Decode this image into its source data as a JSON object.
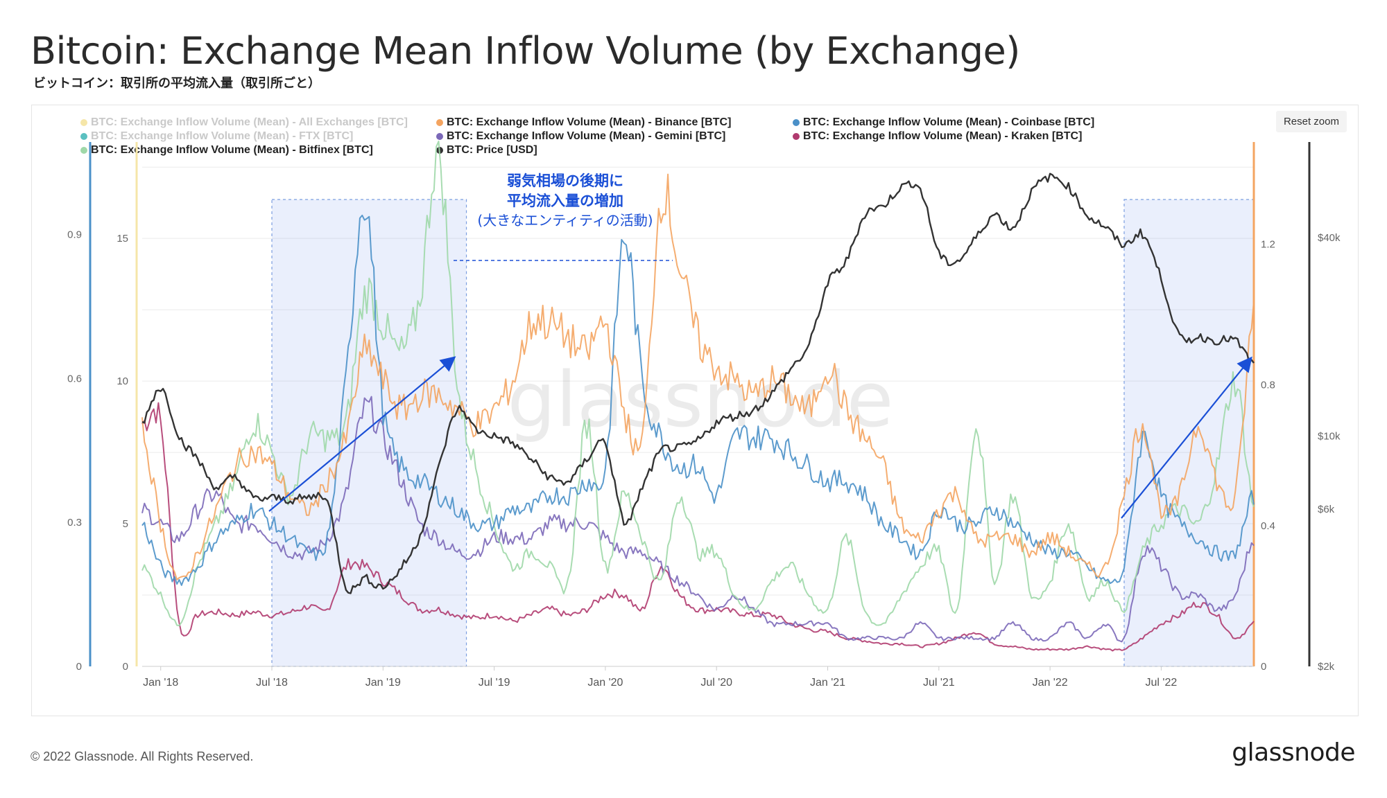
{
  "title": "Bitcoin: Exchange Mean Inflow Volume (by Exchange)",
  "subtitle": "ビットコイン：取引所の平均流入量（取引所ごと）",
  "reset_zoom": "Reset zoom",
  "watermark": "glassnode",
  "footer": "© 2022 Glassnode. All Rights Reserved.",
  "brand": "glassnode",
  "legend": [
    {
      "label": "BTC: Exchange Inflow Volume (Mean) - All Exchanges [BTC]",
      "color": "#f5e6a8",
      "faded": true
    },
    {
      "label": "BTC: Exchange Inflow Volume (Mean) - Binance [BTC]",
      "color": "#f4a460",
      "faded": false
    },
    {
      "label": "BTC: Exchange Inflow Volume (Mean) - Coinbase [BTC]",
      "color": "#4a90c8",
      "faded": false
    },
    {
      "label": "BTC: Exchange Inflow Volume (Mean) - FTX [BTC]",
      "color": "#5bc0c0",
      "faded": true
    },
    {
      "label": "BTC: Exchange Inflow Volume (Mean) - Gemini [BTC]",
      "color": "#7b68b8",
      "faded": false
    },
    {
      "label": "BTC: Exchange Inflow Volume (Mean) - Kraken [BTC]",
      "color": "#b03a6e",
      "faded": false
    },
    {
      "label": "BTC: Exchange Inflow Volume (Mean) - Bitfinex [BTC]",
      "color": "#9fd8a8",
      "faded": false
    },
    {
      "label": "BTC: Price [USD]",
      "color": "#333333",
      "faded": false
    }
  ],
  "annotation": {
    "line1": "弱気相場の後期に",
    "line2": "平均流入量の増加",
    "line3": "(大きなエンティティの活動)",
    "color": "#1a4fd6"
  },
  "chart_data": {
    "type": "line",
    "x_ticks": [
      "Jan '18",
      "Jul '18",
      "Jan '19",
      "Jul '19",
      "Jan '20",
      "Jul '20",
      "Jan '21",
      "Jul '21",
      "Jan '22",
      "Jul '22"
    ],
    "x_range": [
      "2017-12-01",
      "2022-11-15"
    ],
    "axes": {
      "left_outer": {
        "ticks": [
          "0",
          "0.3",
          "0.6",
          "0.9"
        ],
        "range": [
          0,
          1.1
        ]
      },
      "left_inner": {
        "ticks": [
          "0",
          "5",
          "10",
          "15"
        ],
        "range": [
          0,
          18.5
        ]
      },
      "right_inner": {
        "ticks": [
          "0",
          "0.4",
          "0.8",
          "1.2"
        ],
        "range": [
          0,
          1.5
        ]
      },
      "right_price_log": {
        "ticks": [
          "$2k",
          "$6k",
          "$10k",
          "$40k"
        ],
        "range": [
          2000,
          80000
        ]
      }
    },
    "x": [
      0,
      1,
      2,
      3,
      4,
      5,
      6,
      7,
      8,
      9,
      10,
      11,
      12,
      13,
      14,
      15,
      16,
      17,
      18,
      19,
      20,
      21,
      22,
      23,
      24,
      25,
      26,
      27,
      28,
      29,
      30,
      31,
      32,
      33,
      34,
      35,
      36,
      37,
      38,
      39,
      40,
      41,
      42,
      43,
      44,
      45,
      46,
      47,
      48,
      49,
      50,
      51,
      52,
      53,
      54,
      55,
      56,
      57,
      58,
      59,
      60
    ],
    "x_unit": "months since Dec 2017",
    "series": [
      {
        "name": "Binance",
        "axis": "left_inner",
        "color": "#f4a460",
        "values": [
          8.3,
          5.0,
          3.0,
          4.0,
          5.5,
          7.0,
          7.5,
          7.0,
          6.0,
          5.5,
          6.5,
          8.0,
          11.0,
          10.0,
          9.0,
          9.5,
          9.5,
          9.0,
          8.5,
          9.0,
          10.0,
          12.0,
          12.0,
          11.5,
          11.0,
          12.0,
          9.0,
          8.0,
          16.5,
          14.0,
          11.5,
          10.5,
          10.0,
          9.5,
          10.0,
          9.5,
          9.0,
          10.5,
          9.0,
          8.0,
          7.0,
          5.0,
          4.5,
          5.5,
          6.0,
          4.5,
          4.5,
          4.5,
          4.0,
          4.5,
          4.0,
          3.5,
          3.5,
          6.0,
          8.5,
          5.5,
          6.0,
          8.5,
          6.5,
          6.0,
          12.5
        ]
      },
      {
        "name": "Coinbase",
        "axis": "left_inner",
        "color": "#4a90c8",
        "values": [
          5.0,
          3.5,
          3.0,
          3.5,
          4.5,
          5.0,
          5.5,
          5.0,
          4.5,
          4.0,
          4.5,
          10.0,
          16.5,
          9.0,
          7.0,
          6.5,
          6.0,
          5.5,
          5.0,
          5.0,
          5.5,
          5.5,
          6.0,
          6.0,
          6.5,
          7.0,
          15.0,
          10.0,
          8.0,
          7.0,
          7.0,
          6.0,
          8.0,
          8.0,
          8.0,
          7.5,
          7.0,
          6.5,
          6.5,
          6.0,
          5.0,
          4.5,
          4.0,
          5.5,
          5.0,
          5.0,
          5.5,
          5.0,
          4.5,
          4.0,
          4.0,
          3.5,
          3.0,
          3.5,
          8.0,
          6.0,
          5.0,
          4.5,
          4.0,
          4.0,
          6.0
        ]
      },
      {
        "name": "Gemini",
        "axis": "left_inner",
        "color": "#7b68b8",
        "values": [
          5.5,
          5.0,
          4.5,
          5.5,
          6.0,
          5.0,
          5.0,
          4.5,
          4.0,
          4.0,
          4.5,
          6.0,
          9.0,
          8.0,
          6.5,
          5.0,
          4.5,
          4.0,
          4.0,
          4.5,
          4.5,
          4.5,
          5.0,
          5.0,
          5.0,
          4.5,
          4.0,
          4.0,
          3.5,
          3.0,
          2.5,
          2.0,
          2.5,
          2.0,
          1.5,
          1.5,
          1.5,
          1.5,
          1.0,
          1.0,
          1.0,
          1.0,
          1.5,
          1.0,
          1.0,
          1.0,
          1.0,
          1.5,
          1.0,
          1.0,
          1.5,
          1.0,
          1.5,
          1.0,
          4.0,
          3.5,
          2.5,
          2.5,
          2.0,
          2.5,
          4.5
        ]
      },
      {
        "name": "Kraken",
        "axis": "left_inner",
        "color": "#b03a6e",
        "values": [
          8.5,
          8.5,
          1.5,
          1.8,
          1.9,
          1.8,
          1.9,
          1.8,
          1.9,
          2.1,
          2.0,
          3.5,
          3.5,
          3.0,
          2.5,
          2.0,
          2.0,
          1.8,
          1.7,
          1.8,
          1.6,
          1.8,
          2.0,
          1.8,
          2.0,
          2.5,
          2.5,
          2.0,
          3.5,
          2.5,
          2.0,
          2.0,
          1.9,
          1.8,
          1.8,
          1.5,
          1.3,
          1.2,
          1.0,
          0.9,
          0.8,
          0.8,
          0.7,
          0.8,
          1.0,
          1.2,
          0.8,
          0.7,
          0.6,
          0.6,
          0.6,
          0.7,
          0.6,
          0.6,
          1.0,
          1.5,
          1.8,
          2.2,
          1.8,
          1.0,
          1.5
        ]
      },
      {
        "name": "Bitfinex",
        "axis": "left_inner",
        "color": "#9fd8a8",
        "values": [
          3.5,
          2.5,
          1.5,
          3.5,
          5.0,
          6.5,
          8.5,
          7.5,
          6.0,
          8.0,
          8.0,
          8.5,
          13.0,
          12.0,
          11.0,
          13.0,
          18.0,
          10.0,
          7.0,
          5.0,
          3.5,
          4.0,
          3.5,
          3.0,
          8.5,
          3.5,
          6.0,
          4.5,
          3.0,
          6.0,
          4.0,
          4.0,
          2.5,
          2.0,
          3.0,
          3.5,
          2.5,
          2.0,
          4.5,
          2.0,
          1.5,
          2.5,
          3.5,
          4.0,
          2.0,
          8.5,
          3.0,
          6.0,
          2.5,
          3.0,
          5.0,
          2.5,
          3.0,
          2.0,
          4.0,
          5.0,
          5.5,
          5.0,
          7.0,
          10.0,
          5.5
        ]
      },
      {
        "name": "Price",
        "axis": "right_price_log",
        "color": "#333333",
        "values": [
          11000,
          14000,
          10000,
          8500,
          7000,
          7500,
          6500,
          6500,
          6400,
          6500,
          6300,
          3500,
          3700,
          3500,
          4000,
          5000,
          8000,
          12000,
          10500,
          10000,
          9500,
          8500,
          7500,
          7300,
          8500,
          9500,
          5500,
          7000,
          9000,
          9200,
          9700,
          11000,
          11500,
          12000,
          13500,
          16000,
          19000,
          29000,
          34000,
          47000,
          50000,
          57000,
          56000,
          36000,
          34000,
          40000,
          47000,
          43000,
          55000,
          61000,
          57000,
          47000,
          43000,
          38000,
          41000,
          30000,
          20000,
          20000,
          19500,
          19500,
          16500
        ]
      }
    ],
    "highlight_ranges": [
      [
        "2018-07-01",
        "2019-05-15"
      ],
      [
        "2022-05-01",
        "2022-11-15"
      ]
    ]
  }
}
